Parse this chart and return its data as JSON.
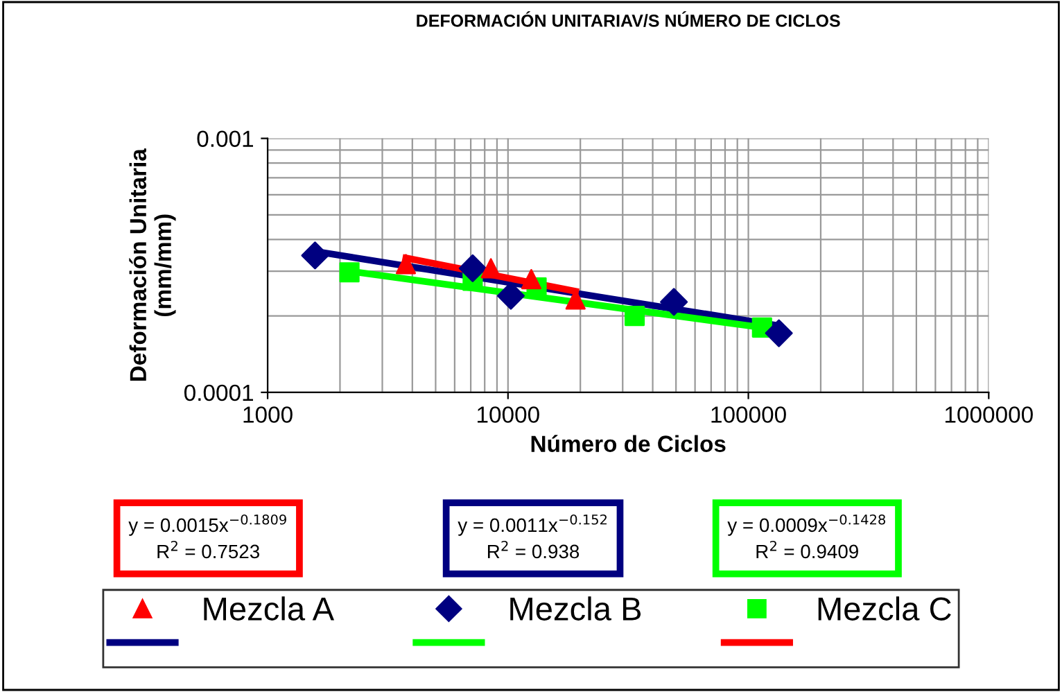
{
  "chart_data": {
    "type": "scatter",
    "title": "DEFORMACIÓN UNITARIAV/S NÚMERO DE CICLOS",
    "xlabel": "Número de Ciclos",
    "ylabel": "Deformación Unitaria\n(mm/mm)",
    "log": "xy",
    "xlim": [
      1000,
      1000000
    ],
    "ylim": [
      0.0001,
      0.001
    ],
    "xticks": [
      1000,
      10000,
      100000,
      1000000
    ],
    "yticks": [
      0.0001,
      0.001
    ],
    "grid": true,
    "legend": "bottom",
    "series": [
      {
        "name": "Mezcla A",
        "marker": "triangle",
        "color": "#ff0000",
        "x": [
          3760,
          8490,
          12500,
          19100
        ],
        "values": [
          0.00032,
          0.000308,
          0.000279,
          0.000232
        ]
      },
      {
        "name": "Mezcla B",
        "marker": "diamond",
        "color": "#000080",
        "x": [
          1575,
          7130,
          10280,
          49000,
          134000
        ],
        "values": [
          0.000346,
          0.000308,
          0.00024,
          0.000227,
          0.000171
        ]
      },
      {
        "name": "Mezcla C",
        "marker": "square",
        "color": "#00ff00",
        "x": [
          2190,
          7130,
          13150,
          33650,
          114000
        ],
        "values": [
          0.000297,
          0.000275,
          0.000259,
          0.0002,
          0.00018
        ]
      },
      {
        "type": "line",
        "marker": "none",
        "color": "#000080",
        "x": [
          1575,
          134000
        ],
        "values": [
          0.000359,
          0.000183
        ]
      },
      {
        "type": "line",
        "marker": "none",
        "color": "#00ff00",
        "x": [
          2190,
          114000
        ],
        "values": [
          0.0003,
          0.00018
        ]
      },
      {
        "type": "line",
        "marker": "none",
        "color": "#ff0000",
        "x": [
          3760,
          19100
        ],
        "values": [
          0.000338,
          0.00025
        ]
      }
    ],
    "annotations": [
      "y = 0.0015x$^{−0.1809}$\nR$^{2}$ = 0.7523",
      "y = 0.0011x$^{−0.152}$\nR$^{2}$ = 0.938",
      "y = 0.0009x$^{−0.1428}$\nR$^{2}$ = 0.9409"
    ]
  }
}
